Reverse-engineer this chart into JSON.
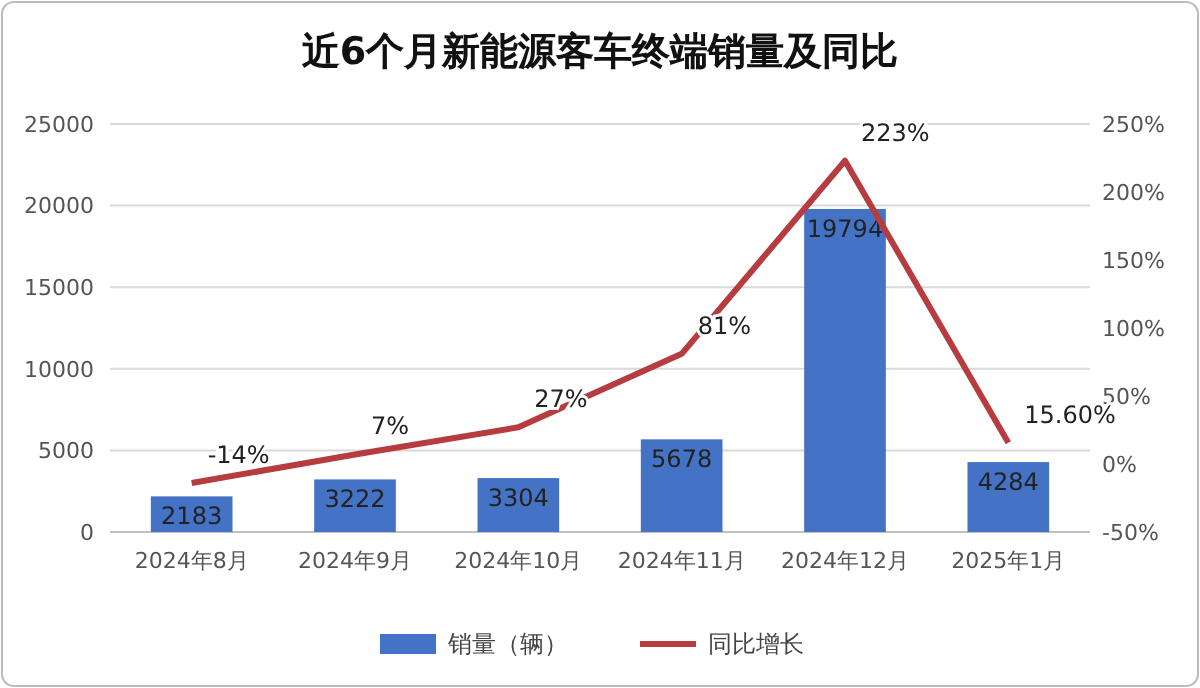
{
  "chart_data": {
    "type": "bar",
    "title": "近6个月新能源客车终端销量及同比",
    "categories": [
      "2024年8月",
      "2024年9月",
      "2024年10月",
      "2024年11月",
      "2024年12月",
      "2025年1月"
    ],
    "series": [
      {
        "name": "销量（辆）",
        "color": "#4472c4",
        "values": [
          2183,
          3222,
          3304,
          5678,
          19794,
          4284
        ],
        "value_labels": [
          "2183",
          "3222",
          "3304",
          "5678",
          "19794",
          "4284"
        ]
      },
      {
        "name": "同比增长",
        "type": "line",
        "axis": "y2",
        "color": "#b63c3f",
        "values": [
          -14,
          7,
          27,
          81,
          223,
          15.6
        ],
        "value_labels": [
          "-14%",
          "7%",
          "27%",
          "81%",
          "223%",
          "15.60%"
        ]
      }
    ],
    "ylim": [
      0,
      25000
    ],
    "yticks": [
      0,
      5000,
      10000,
      15000,
      20000,
      25000
    ],
    "y2lim": [
      -50,
      250
    ],
    "y2ticks": [
      {
        "value": -50,
        "label": "-50%"
      },
      {
        "value": 0,
        "label": "0%"
      },
      {
        "value": 50,
        "label": "50%"
      },
      {
        "value": 100,
        "label": "100%"
      },
      {
        "value": 150,
        "label": "150%"
      },
      {
        "value": 200,
        "label": "200%"
      },
      {
        "value": 250,
        "label": "250%"
      }
    ],
    "grid": "y",
    "legend": "bottom",
    "marker": "none",
    "line_style": "solid"
  }
}
